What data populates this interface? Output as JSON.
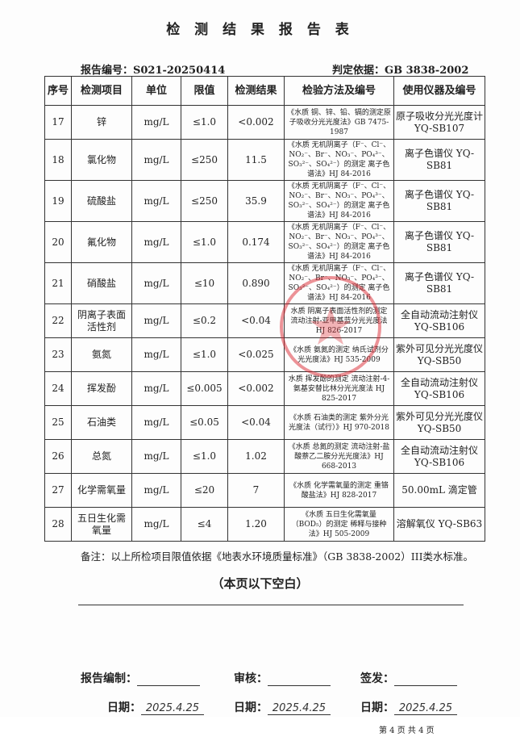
{
  "title": "检 测 结 果 报 告 表",
  "report_no": "报告编号：S021-20250414",
  "basis": "判定依据：GB 3838-2002",
  "headers": [
    "序号",
    "检测项目",
    "单位",
    "限值",
    "检测结果",
    "检验方法及编号",
    "使用仪器及编号"
  ],
  "rows": [
    [
      "17",
      "锌",
      "mg/L",
      "≤1.0",
      "<0.002",
      "《水质 铜、锌、铅、镉的测定原子吸收分光光度法》GB 7475-1987",
      "原子吸收分光光度计 YQ-SB107"
    ],
    [
      "18",
      "氯化物",
      "mg/L",
      "≤250",
      "11.5",
      "《水质 无机阴离子（F⁻、Cl⁻、NO₂⁻、Br⁻、NO₃⁻、PO₄³⁻、SO₃²⁻、SO₄²⁻）的测定 离子色谱法》HJ 84-2016",
      "离子色谱仪 YQ-SB81"
    ],
    [
      "19",
      "硫酸盐",
      "mg/L",
      "≤250",
      "35.9",
      "《水质 无机阴离子（F⁻、Cl⁻、NO₂⁻、Br⁻、NO₃⁻、PO₄³⁻、SO₃²⁻、SO₄²⁻）的测定 离子色谱法》HJ 84-2016",
      "离子色谱仪 YQ-SB81"
    ],
    [
      "20",
      "氟化物",
      "mg/L",
      "≤1.0",
      "0.174",
      "《水质 无机阴离子（F⁻、Cl⁻、NO₂⁻、Br⁻、NO₃⁻、PO₄³⁻、SO₃²⁻、SO₄²⁻）的测定 离子色谱法》HJ 84-2016",
      "离子色谱仪 YQ-SB81"
    ],
    [
      "21",
      "硝酸盐",
      "mg/L",
      "≤10",
      "0.890",
      "《水质 无机阴离子（F⁻、Cl⁻、NO₂⁻、Br⁻、NO₃⁻、PO₄³⁻、SO₃²⁻、SO₄²⁻）的测定 离子色谱法》HJ 84-2016",
      "离子色谱仪 YQ-SB81"
    ],
    [
      "22",
      "阴离子表面活性剂",
      "mg/L",
      "≤0.2",
      "<0.04",
      "水质 阴离子表面活性剂的测定 流动注射-亚甲基蓝分光光度法HJ 826-2017",
      "全自动流动注射仪 YQ-SB106"
    ],
    [
      "23",
      "氨氮",
      "mg/L",
      "≤1.0",
      "<0.025",
      "《水质 氨氮的测定 纳氏试剂分光光度法》HJ 535-2009",
      "紫外可见分光光度仪 YQ-SB50"
    ],
    [
      "24",
      "挥发酚",
      "mg/L",
      "≤0.005",
      "<0.002",
      "水质 挥发酚的测定 流动注射-4-氨基安替比林分光光度法 HJ 825-2017",
      "全自动流动注射仪 YQ-SB106"
    ],
    [
      "25",
      "石油类",
      "mg/L",
      "≤0.05",
      "<0.04",
      "《水质 石油类的测定 紫外分光光度法（试行）》HJ 970-2018",
      "紫外可见分光光度仪 YQ-SB50"
    ],
    [
      "26",
      "总氮",
      "mg/L",
      "≤1.0",
      "1.02",
      "《水质 总氮的测定 流动注射-盐酸萘乙二胺分光光度法》HJ 668-2013",
      "全自动流动注射仪 YQ-SB106"
    ],
    [
      "27",
      "化学需氧量",
      "mg/L",
      "≤20",
      "7",
      "《水质 化学需氧量的测定 重铬酸盐法》HJ 828-2017",
      "50.00mL 滴定管"
    ],
    [
      "28",
      "五日生化需氧量",
      "mg/L",
      "≤4",
      "1.20",
      "《水质 五日生化需氧量（BOD₅）的测定 稀释与接种法》HJ 505-2009",
      "溶解氧仪 YQ-SB63"
    ]
  ],
  "note": "备注：以上所检项目限值依据《地表水环境质量标准》（GB 3838-2002）III类水标准。",
  "blank": "（本页以下空白）",
  "signatures": {
    "compiler_label": "报告编制：",
    "reviewer_label": "审核：",
    "issuer_label": "签发：",
    "date_label": "日期：",
    "date1": "2025.4.25",
    "date2": "2025.4.25",
    "date3": "2025.4.25"
  },
  "page": "第 4 页 共 4 页",
  "stamp_color": "#dc2832"
}
